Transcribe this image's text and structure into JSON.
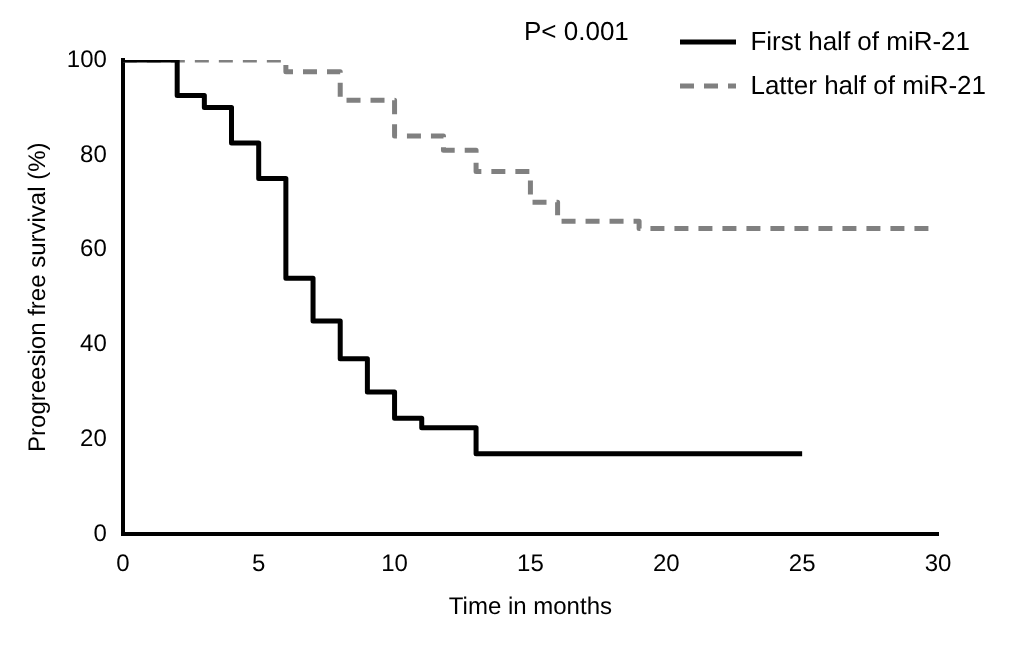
{
  "chart_data": {
    "type": "step",
    "xlabel": "Time in months",
    "ylabel": "Progreesion free survival (%)",
    "annotations": [
      "P< 0.001"
    ],
    "xlim": [
      0,
      30
    ],
    "xticks": [
      0,
      5,
      10,
      15,
      20,
      25,
      30
    ],
    "ylim": [
      0,
      100
    ],
    "yticks": [
      0,
      20,
      40,
      60,
      80,
      100
    ],
    "grid": false,
    "legend": "top right",
    "series": [
      {
        "name": "First half of miR-21",
        "color": "#000000",
        "line_style": "solid",
        "x": [
          0,
          2,
          3,
          4,
          5,
          6,
          7,
          8,
          9,
          10,
          11,
          13,
          25
        ],
        "values": [
          100,
          92.5,
          90,
          82.5,
          75,
          54,
          45,
          37,
          30,
          24.5,
          22.5,
          17,
          17
        ]
      },
      {
        "name": "Latter half of miR-21",
        "color": "#808080",
        "line_style": "dashed",
        "x": [
          0,
          6,
          8,
          10,
          11.8,
          13,
          15,
          16,
          19,
          30
        ],
        "values": [
          100,
          97.5,
          91.5,
          84,
          81,
          76.5,
          70,
          66,
          64.5,
          64.5
        ]
      }
    ]
  }
}
